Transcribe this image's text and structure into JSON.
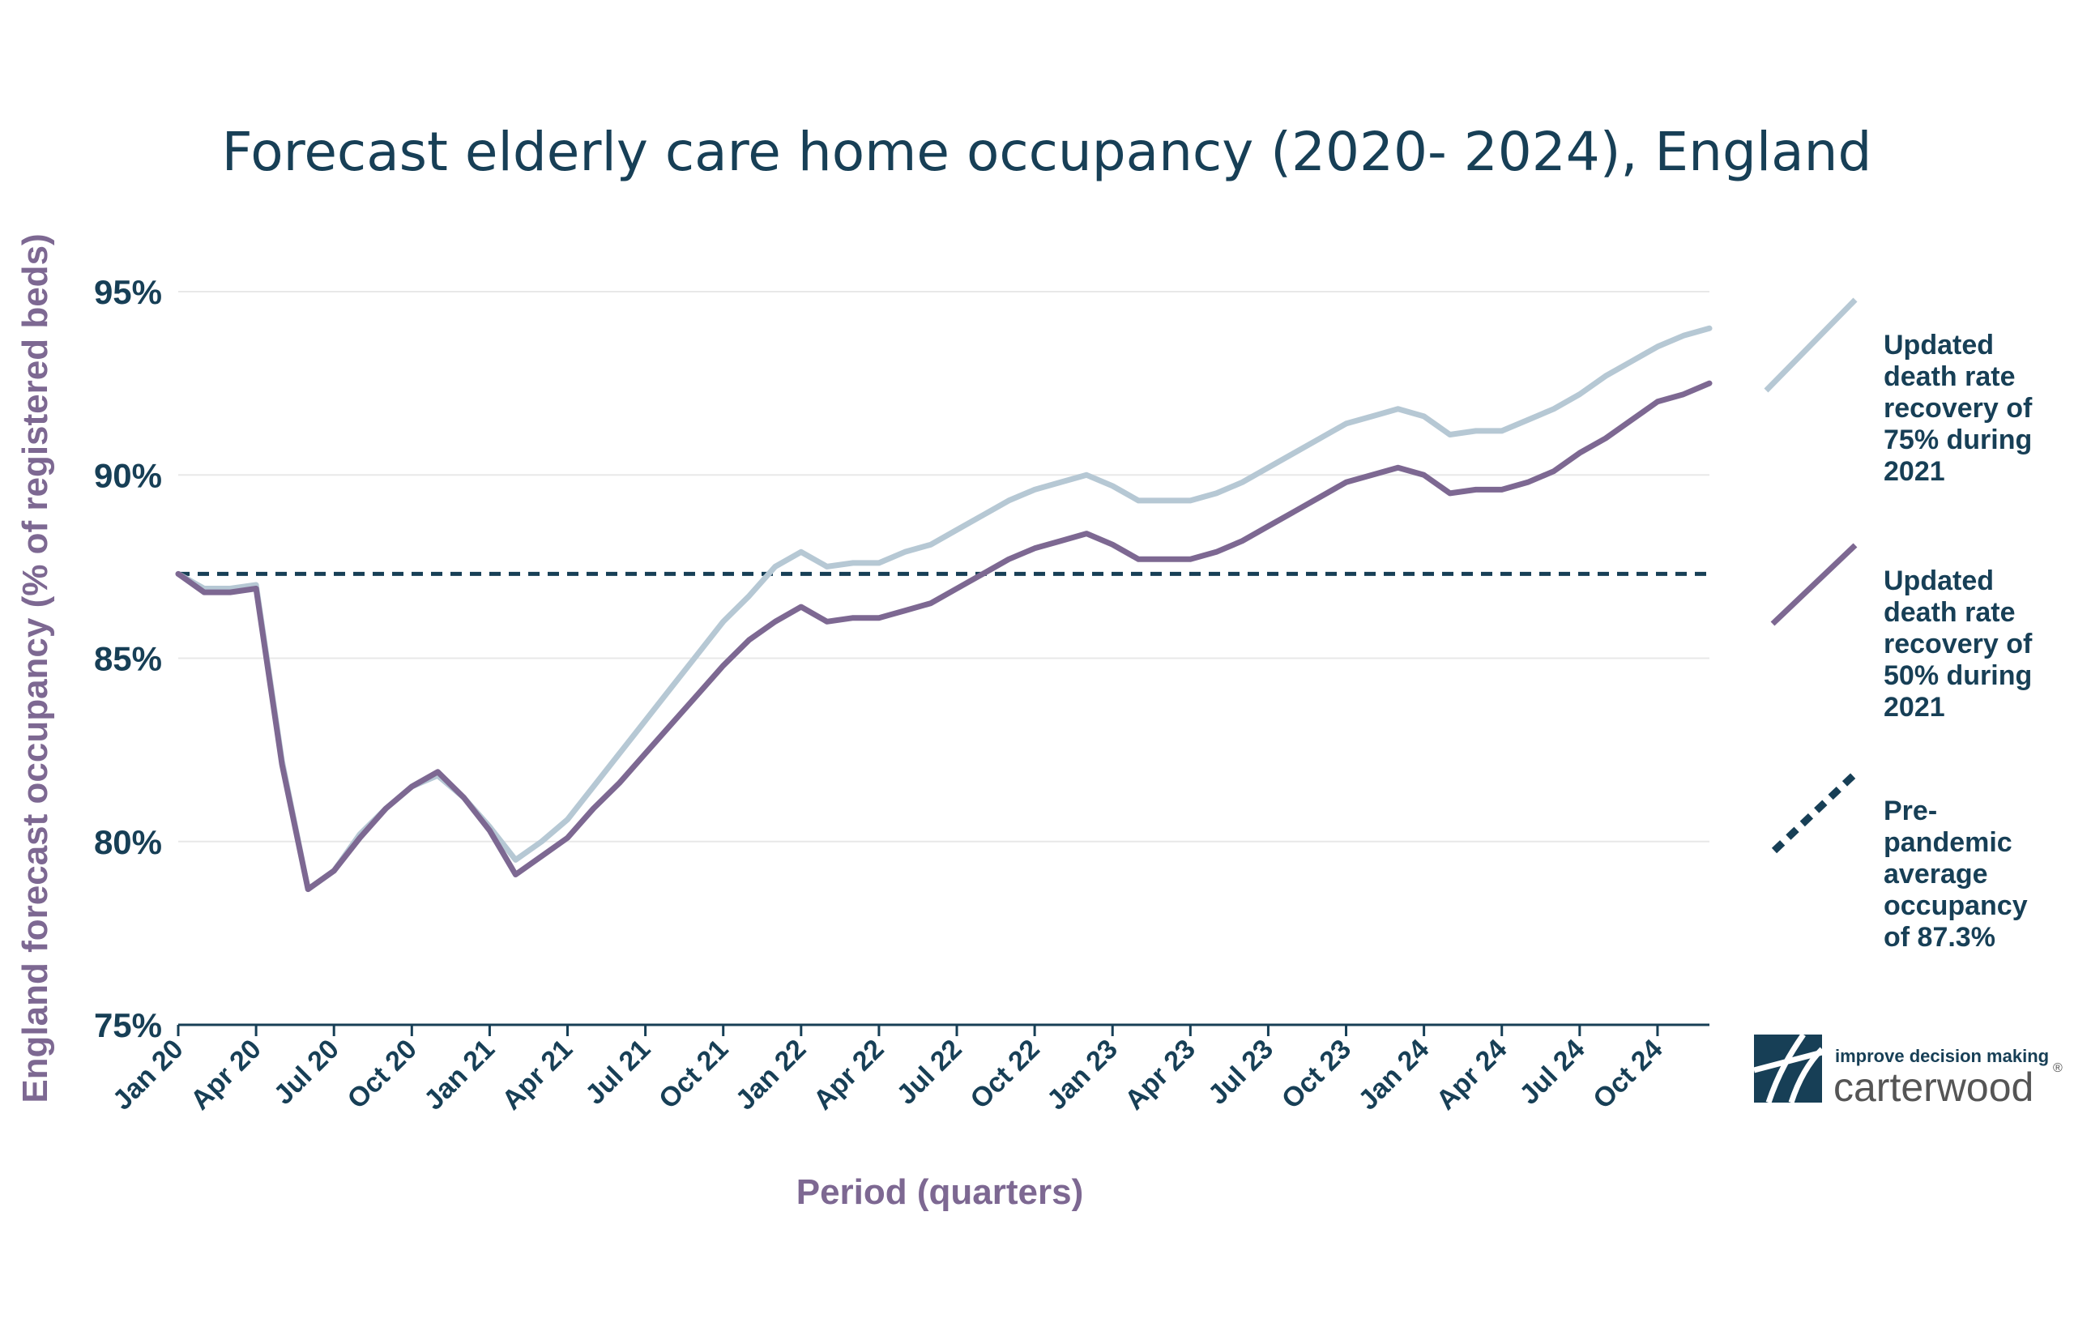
{
  "colors": {
    "title": "#173f56",
    "axis_title": "#7d6892",
    "tick": "#173f56",
    "grid": "#e8e8e8",
    "series_75": "#b6c8d4",
    "series_50": "#7d6892",
    "baseline": "#173f56"
  },
  "chart_data": {
    "type": "line",
    "title": "Forecast elderly care home occupancy (2020- 2024), England",
    "xlabel": "Period (quarters)",
    "ylabel": "England forecast occupancy (% of registered beds)",
    "x_ticks": [
      "Jan 20",
      "Apr 20",
      "Jul 20",
      "Oct 20",
      "Jan 21",
      "Apr 21",
      "Jul 21",
      "Oct 21",
      "Jan 22",
      "Apr 22",
      "Jul 22",
      "Oct 22",
      "Jan 23",
      "Apr 23",
      "Jul 23",
      "Oct 23",
      "Jan 24",
      "Apr 24",
      "Jul 24",
      "Oct 24"
    ],
    "y_ticks": [
      "75%",
      "80%",
      "85%",
      "90%",
      "95%"
    ],
    "ylim": [
      75,
      95
    ],
    "grid": true,
    "legend_position": "right",
    "series": [
      {
        "name": "Updated death rate recovery of 75% during 2021",
        "values": [
          87.3,
          86.9,
          86.9,
          87.0,
          82.2,
          78.7,
          79.2,
          80.2,
          80.9,
          81.5,
          81.8,
          81.2,
          80.4,
          79.5,
          80.0,
          80.6,
          81.5,
          82.4,
          83.3,
          84.2,
          85.1,
          86.0,
          86.7,
          87.5,
          87.9,
          87.5,
          87.6,
          87.6,
          87.9,
          88.1,
          88.5,
          88.9,
          89.3,
          89.6,
          89.8,
          90.0,
          89.7,
          89.3,
          89.3,
          89.3,
          89.5,
          89.8,
          90.2,
          90.6,
          91.0,
          91.4,
          91.6,
          91.8,
          91.6,
          91.1,
          91.2,
          91.2,
          91.5,
          91.8,
          92.2,
          92.7,
          93.1,
          93.5,
          93.8,
          94.0
        ],
        "color": "#b6c8d4"
      },
      {
        "name": "Updated death rate recovery of 50% during 2021",
        "values": [
          87.3,
          86.8,
          86.8,
          86.9,
          82.1,
          78.7,
          79.2,
          80.1,
          80.9,
          81.5,
          81.9,
          81.2,
          80.3,
          79.1,
          79.6,
          80.1,
          80.9,
          81.6,
          82.4,
          83.2,
          84.0,
          84.8,
          85.5,
          86.0,
          86.4,
          86.0,
          86.1,
          86.1,
          86.3,
          86.5,
          86.9,
          87.3,
          87.7,
          88.0,
          88.2,
          88.4,
          88.1,
          87.7,
          87.7,
          87.7,
          87.9,
          88.2,
          88.6,
          89.0,
          89.4,
          89.8,
          90.0,
          90.2,
          90.0,
          89.5,
          89.6,
          89.6,
          89.8,
          90.1,
          90.6,
          91.0,
          91.5,
          92.0,
          92.2,
          92.5
        ],
        "color": "#7d6892"
      },
      {
        "name": "Pre-pandemic average occupancy of 87.3%",
        "values": [
          87.3,
          87.3
        ],
        "x_range": [
          0,
          59
        ],
        "color": "#173f56",
        "style": "dashed"
      }
    ],
    "legend": [
      {
        "lines": [
          "Updated",
          "death rate",
          "recovery of",
          "75% during",
          "2021"
        ]
      },
      {
        "lines": [
          "Updated",
          "death rate",
          "recovery of",
          "50% during",
          "2021"
        ]
      },
      {
        "lines": [
          "Pre-",
          "pandemic",
          "average",
          "occupancy",
          "of 87.3%"
        ]
      }
    ]
  },
  "logo": {
    "tagline": "improve decision making",
    "wordmark": "carterwood",
    "registered": "®"
  }
}
